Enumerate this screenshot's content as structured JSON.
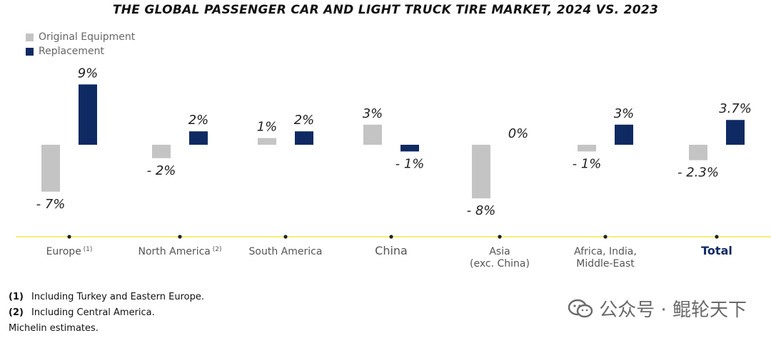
{
  "chart_data": {
    "type": "bar",
    "title": "THE GLOBAL PASSENGER CAR AND LIGHT TRUCK TIRE MARKET, 2024 VS. 2023",
    "categories": [
      "Europe",
      "North America",
      "South America",
      "China",
      "Asia (exc. China)",
      "Africa, India, Middle-East",
      "Total"
    ],
    "category_labels": [
      {
        "lines": [
          "Europe"
        ],
        "sup": "(1)"
      },
      {
        "lines": [
          "North America"
        ],
        "sup": "(2)"
      },
      {
        "lines": [
          "South America"
        ],
        "sup": ""
      },
      {
        "lines": [
          "China"
        ],
        "sup": ""
      },
      {
        "lines": [
          "Asia",
          "(exc. China)"
        ],
        "sup": ""
      },
      {
        "lines": [
          "Africa, India,",
          "Middle-East"
        ],
        "sup": ""
      },
      {
        "lines": [
          "Total"
        ],
        "sup": ""
      }
    ],
    "series": [
      {
        "name": "Original Equipment",
        "color": "#c4c4c4",
        "values": [
          -7,
          -2,
          1,
          3,
          -8,
          -1,
          -2.3
        ],
        "labels": [
          "- 7%",
          "- 2%",
          "1%",
          "3%",
          "- 8%",
          "- 1%",
          "- 2.3%"
        ]
      },
      {
        "name": "Replacement",
        "color": "#0f2a63",
        "values": [
          9,
          2,
          2,
          -1,
          0,
          3,
          3.7
        ],
        "labels": [
          "9%",
          "2%",
          "2%",
          "- 1%",
          "0%",
          "3%",
          "3.7%"
        ]
      }
    ],
    "legend_position": "top-left",
    "grid": false,
    "baseline_color": "#f2e84a",
    "highlight_category": "Total",
    "highlight_color": "#0f2a63"
  },
  "footnotes": [
    {
      "num": "(1)",
      "text": "Including Turkey and Eastern Europe."
    },
    {
      "num": "(2)",
      "text": "Including Central America."
    },
    {
      "num": "",
      "text": "Michelin estimates."
    }
  ],
  "watermark": {
    "text": "公众号 · 鲲轮天下",
    "icon": "wechat-icon"
  }
}
